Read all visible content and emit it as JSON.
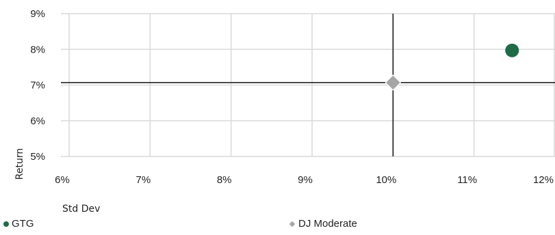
{
  "chart_data": {
    "type": "scatter",
    "title": "",
    "xlabel": "Std Dev",
    "ylabel": "Return",
    "xlim": [
      0.06,
      0.12
    ],
    "ylim": [
      0.05,
      0.09
    ],
    "x_ticks": [
      "6%",
      "7%",
      "8%",
      "9%",
      "10%",
      "11%",
      "12%"
    ],
    "y_ticks": [
      "9%",
      "8%",
      "7%",
      "6%",
      "5%"
    ],
    "grid": true,
    "legend_placement": "bottom",
    "crosshair": {
      "x": 0.1,
      "y": 0.0707
    },
    "series": [
      {
        "name": "GTG",
        "x": 0.1147,
        "y": 0.0797,
        "marker": "circle",
        "color": "#1e6b45"
      },
      {
        "name": "DJ Moderate",
        "x": 0.1,
        "y": 0.0707,
        "marker": "diamond",
        "color": "#a6a6a6"
      }
    ]
  }
}
